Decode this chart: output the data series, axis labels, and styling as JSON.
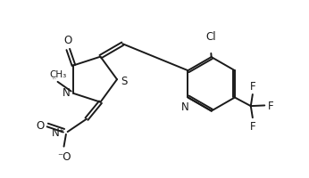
{
  "bg_color": "#ffffff",
  "line_color": "#1a1a1a",
  "line_width": 1.4,
  "font_size": 8.5,
  "figsize": [
    3.46,
    2.01
  ],
  "dpi": 100,
  "xlim": [
    0,
    10
  ],
  "ylim": [
    0,
    5.8
  ]
}
